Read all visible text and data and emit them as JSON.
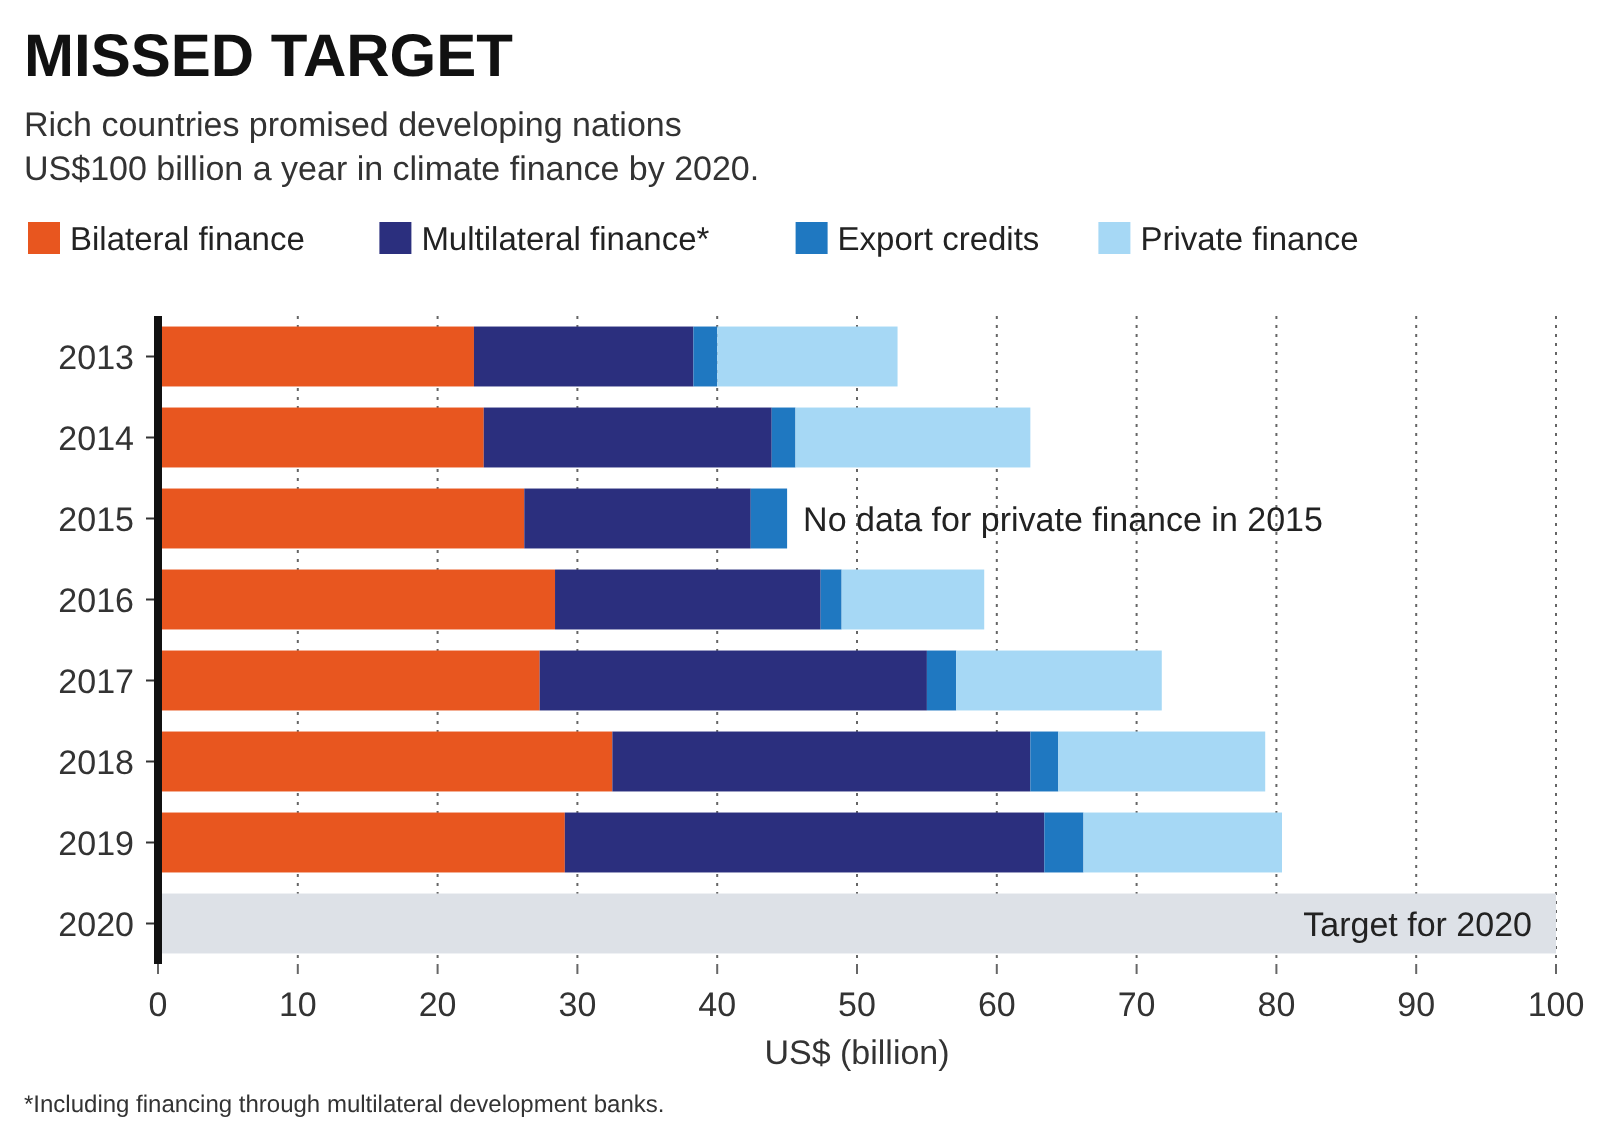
{
  "chart_data": {
    "type": "bar",
    "orientation": "horizontal",
    "stacked": true,
    "title": "MISSED TARGET",
    "subtitle": "Rich countries promised developing nations\nUS$100 billion a year in climate finance by 2020.",
    "xlabel": "US$ (billion)",
    "categories": [
      "2013",
      "2014",
      "2015",
      "2016",
      "2017",
      "2018",
      "2019",
      "2020"
    ],
    "series": [
      {
        "name": "Bilateral finance",
        "color": "#e8561f",
        "values": [
          22.6,
          23.3,
          26.2,
          28.4,
          27.3,
          32.5,
          29.1,
          null
        ]
      },
      {
        "name": "Multilateral finance*",
        "color": "#2b2f7e",
        "values": [
          15.7,
          20.6,
          16.2,
          19.0,
          27.7,
          29.9,
          34.3,
          null
        ]
      },
      {
        "name": "Export credits",
        "color": "#1f78c1",
        "values": [
          1.7,
          1.7,
          2.6,
          1.5,
          2.1,
          2.0,
          2.8,
          null
        ]
      },
      {
        "name": "Private finance",
        "color": "#a6d8f5",
        "values": [
          12.9,
          16.8,
          null,
          10.2,
          14.7,
          14.8,
          14.2,
          null
        ]
      },
      {
        "color": "#dde1e7",
        "values": [
          null,
          null,
          null,
          null,
          null,
          null,
          null,
          100
        ]
      }
    ],
    "xlim": [
      0,
      100
    ],
    "xticks": [
      0,
      10,
      20,
      30,
      40,
      50,
      60,
      70,
      80,
      90,
      100
    ],
    "grid": "x",
    "legend": "top",
    "annotations": [
      {
        "text": "No data for private finance in 2015",
        "x": 45,
        "y": "2015"
      },
      {
        "text": "Target for 2020",
        "x": 100,
        "y": "2020"
      },
      "*Including financing through multilateral development banks."
    ]
  }
}
